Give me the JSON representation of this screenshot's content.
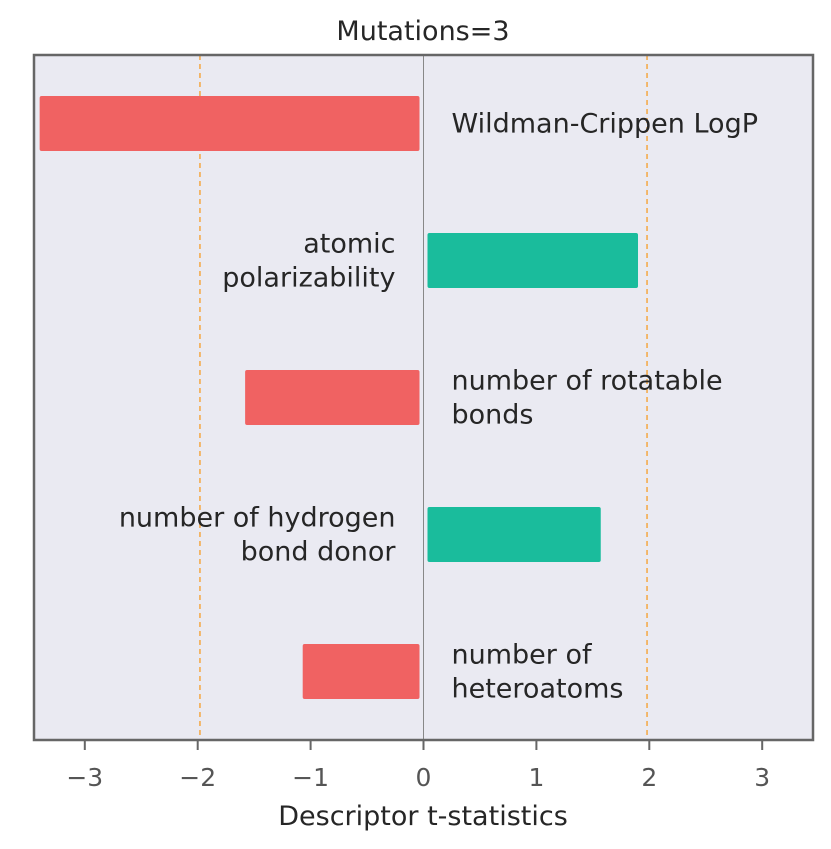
{
  "chart_data": {
    "type": "bar",
    "orientation": "horizontal",
    "title": "Mutations=3",
    "xlabel": "Descriptor t-statistics",
    "ylabel": "",
    "xlim": [
      -3.45,
      3.45
    ],
    "xticks": [
      -3,
      -2,
      -1,
      0,
      1,
      2,
      3
    ],
    "xtick_labels": [
      "−3",
      "−2",
      "−1",
      "0",
      "1",
      "2",
      "3"
    ],
    "threshold_lines": [
      -1.98,
      1.98
    ],
    "grid": false,
    "categories": [
      [
        "Wildman-Crippen LogP"
      ],
      [
        "atomic",
        "polarizability"
      ],
      [
        "number of rotatable",
        "bonds"
      ],
      [
        "number of hydrogen",
        "bond donor"
      ],
      [
        "number of",
        "heteroatoms"
      ]
    ],
    "values": [
      -3.4,
      1.9,
      -1.58,
      1.57,
      -1.07
    ],
    "colors": {
      "negative": "#f06262",
      "positive": "#1abc9c",
      "threshold": "#f5a742",
      "plot_background": "#eaeaf2",
      "frame": "#666666",
      "zero_line": "#888888"
    }
  }
}
